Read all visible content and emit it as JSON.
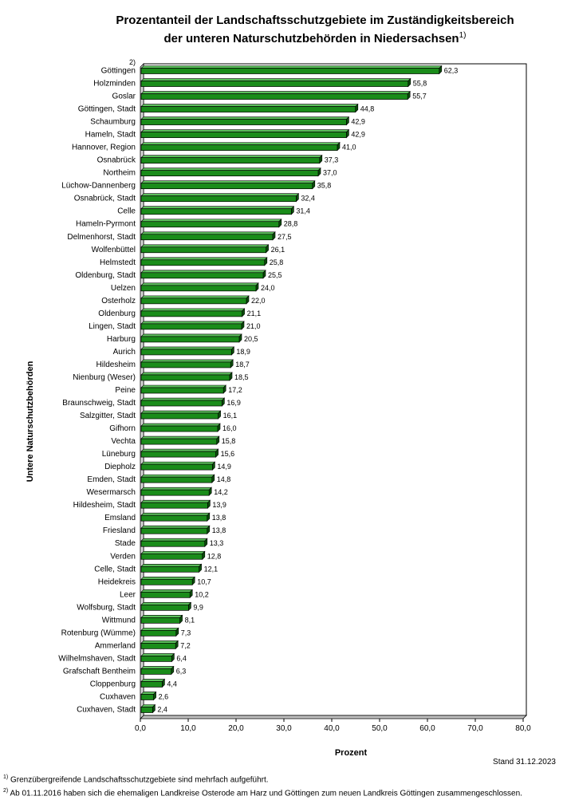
{
  "chart_data": {
    "type": "bar",
    "orientation": "horizontal",
    "title_line1": "Prozentanteil der Landschaftsschutzgebiete im Zuständigkeitsbereich",
    "title_line2": "der unteren Naturschutzbehörden in Niedersachsen",
    "title_footnote_mark": "1)",
    "xlabel": "Prozent",
    "ylabel": "Untere Naturschutzbehörden",
    "xlim": [
      0,
      80
    ],
    "xticks": [
      "0,0",
      "10,0",
      "20,0",
      "30,0",
      "40,0",
      "50,0",
      "60,0",
      "70,0",
      "80,0"
    ],
    "bar_color": "#1a8c1a",
    "category_footnote": {
      "index": 0,
      "mark": "2)"
    },
    "categories": [
      "Göttingen",
      "Holzminden",
      "Goslar",
      "Göttingen, Stadt",
      "Schaumburg",
      "Hameln, Stadt",
      "Hannover, Region",
      "Osnabrück",
      "Northeim",
      "Lüchow-Dannenberg",
      "Osnabrück, Stadt",
      "Celle",
      "Hameln-Pyrmont",
      "Delmenhorst, Stadt",
      "Wolfenbüttel",
      "Helmstedt",
      "Oldenburg, Stadt",
      "Uelzen",
      "Osterholz",
      "Oldenburg",
      "Lingen, Stadt",
      "Harburg",
      "Aurich",
      "Hildesheim",
      "Nienburg (Weser)",
      "Peine",
      "Braunschweig, Stadt",
      "Salzgitter, Stadt",
      "Gifhorn",
      "Vechta",
      "Lüneburg",
      "Diepholz",
      "Emden, Stadt",
      "Wesermarsch",
      "Hildesheim, Stadt",
      "Emsland",
      "Friesland",
      "Stade",
      "Verden",
      "Celle, Stadt",
      "Heidekreis",
      "Leer",
      "Wolfsburg, Stadt",
      "Wittmund",
      "Rotenburg (Wümme)",
      "Ammerland",
      "Wilhelmshaven, Stadt",
      "Grafschaft Bentheim",
      "Cloppenburg",
      "Cuxhaven",
      "Cuxhaven, Stadt"
    ],
    "values": [
      62.3,
      55.8,
      55.7,
      44.8,
      42.9,
      42.9,
      41.0,
      37.3,
      37.0,
      35.8,
      32.4,
      31.4,
      28.8,
      27.5,
      26.1,
      25.8,
      25.5,
      24.0,
      22.0,
      21.1,
      21.0,
      20.5,
      18.9,
      18.7,
      18.5,
      17.2,
      16.9,
      16.1,
      16.0,
      15.8,
      15.6,
      14.9,
      14.8,
      14.2,
      13.9,
      13.8,
      13.8,
      13.3,
      12.8,
      12.1,
      10.7,
      10.2,
      9.9,
      8.1,
      7.3,
      7.2,
      6.4,
      6.3,
      4.4,
      2.6,
      2.4
    ],
    "value_labels": [
      "62,3",
      "55,8",
      "55,7",
      "44,8",
      "42,9",
      "42,9",
      "41,0",
      "37,3",
      "37,0",
      "35,8",
      "32,4",
      "31,4",
      "28,8",
      "27,5",
      "26,1",
      "25,8",
      "25,5",
      "24,0",
      "22,0",
      "21,1",
      "21,0",
      "20,5",
      "18,9",
      "18,7",
      "18,5",
      "17,2",
      "16,9",
      "16,1",
      "16,0",
      "15,8",
      "15,6",
      "14,9",
      "14,8",
      "14,2",
      "13,9",
      "13,8",
      "13,8",
      "13,3",
      "12,8",
      "12,1",
      "10,7",
      "10,2",
      "9,9",
      "8,1",
      "7,3",
      "7,2",
      "6,4",
      "6,3",
      "4,4",
      "2,6",
      "2,4"
    ]
  },
  "stand": "Stand 31.12.2023",
  "footnotes": [
    {
      "mark": "1)",
      "text": "Grenzübergreifende Landschaftsschutzgebiete sind mehrfach aufgeführt."
    },
    {
      "mark": "2)",
      "text": "Ab 01.11.2016 haben sich die ehemaligen Landkreise Osterode am Harz und Göttingen zum neuen Landkreis Göttingen zusammengeschlossen."
    }
  ]
}
